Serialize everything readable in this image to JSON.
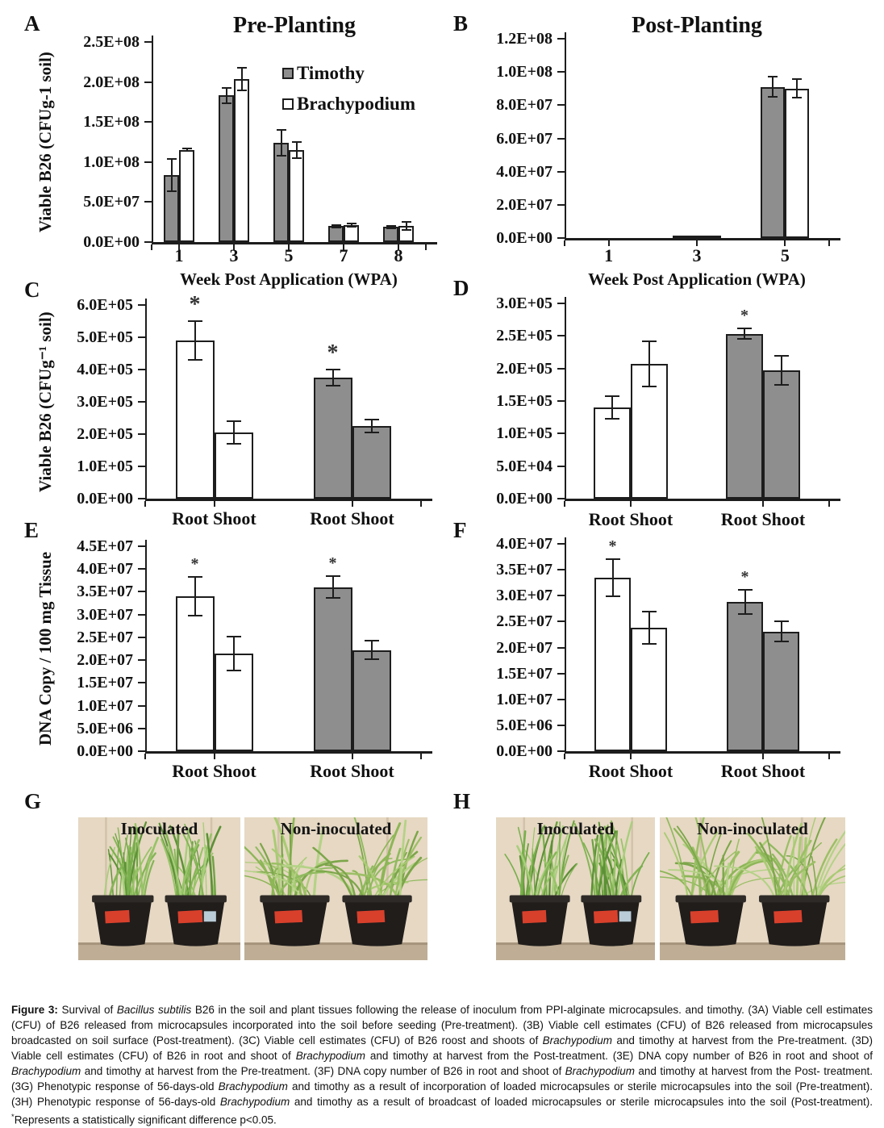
{
  "colors": {
    "bar_gray": "#8e8e8e",
    "bar_white": "#ffffff",
    "bar_border": "#1d1d1d",
    "axis": "#1d1d1d",
    "text": "#111111",
    "star": "#333333",
    "photo_wall": "#e6d8c3",
    "photo_floor": "#bfae95",
    "pot": "#201d1b",
    "sticker_red": "#d8402c",
    "sticker_blue": "#b9ccd7"
  },
  "chart_data": [
    {
      "panel": "A",
      "type": "bar",
      "title": "Pre-Planting",
      "ylabel": "Viable B26 (CFUg-1 soil)",
      "xlabel": "Week Post Application (WPA)",
      "ylim": [
        0,
        250000000.0
      ],
      "grid": false,
      "yticks": [
        "0.0E+00",
        "5.0E+07",
        "1.0E+08",
        "1.5E+08",
        "2.0E+08",
        "2.5E+08"
      ],
      "categories": [
        "1",
        "3",
        "5",
        "7",
        "8"
      ],
      "series": [
        {
          "name": "Timothy",
          "fill": "gray",
          "values": [
            84000000.0,
            183000000.0,
            124000000.0,
            20000000.0,
            19000000.0
          ],
          "errors": [
            20000000.0,
            10000000.0,
            16000000.0,
            1500000.0,
            1500000.0
          ],
          "stars": [
            false,
            false,
            false,
            false,
            false
          ]
        },
        {
          "name": "Brachypodium",
          "fill": "white",
          "values": [
            115000000.0,
            204000000.0,
            115000000.0,
            21000000.0,
            20000000.0
          ],
          "errors": [
            1500000.0,
            14000000.0,
            10000000.0,
            2000000.0,
            5000000.0
          ],
          "stars": [
            false,
            false,
            false,
            false,
            false
          ]
        }
      ],
      "legend": {
        "position": "top-right",
        "items": [
          {
            "label": "Timothy",
            "fill": "gray"
          },
          {
            "label": "Brachypodium",
            "fill": "white"
          }
        ]
      }
    },
    {
      "panel": "B",
      "type": "bar",
      "title": "Post-Planting",
      "ylabel": "",
      "xlabel": "Week Post Application (WPA)",
      "ylim": [
        0,
        120000000.0
      ],
      "grid": false,
      "yticks": [
        "0.0E+00",
        "2.0E+07",
        "4.0E+07",
        "6.0E+07",
        "8.0E+07",
        "1.0E+08",
        "1.2E+08"
      ],
      "categories": [
        "1",
        "3",
        "5"
      ],
      "series": [
        {
          "name": "Timothy",
          "fill": "gray",
          "values": [
            0,
            1000000.0,
            91000000.0
          ],
          "errors": [
            0,
            0,
            6000000.0
          ],
          "stars": [
            false,
            false,
            false
          ]
        },
        {
          "name": "Brachypodium",
          "fill": "white",
          "values": [
            0,
            1000000.0,
            90000000.0
          ],
          "errors": [
            0,
            0,
            5500000.0
          ],
          "stars": [
            false,
            false,
            false
          ]
        }
      ]
    },
    {
      "panel": "C",
      "type": "bar",
      "title": "",
      "ylabel": "Viable B26 (CFUg⁻¹ soil)",
      "xlabel": "",
      "ylim": [
        0,
        600000.0
      ],
      "grid": false,
      "yticks": [
        "0.0E+00",
        "1.0E+05",
        "2.0E+05",
        "3.0E+05",
        "4.0E+05",
        "5.0E+05",
        "6.0E+05"
      ],
      "categories": [
        "Root Shoot",
        "Root Shoot"
      ],
      "group_names": [
        "Brachypodium",
        "Timothy"
      ],
      "group_fills": [
        "white",
        "gray"
      ],
      "series": [
        {
          "name": "Root",
          "values": [
            490000.0,
            375000.0
          ],
          "errors": [
            60000.0,
            25000.0
          ],
          "stars": [
            true,
            true
          ]
        },
        {
          "name": "Shoot",
          "values": [
            205000.0,
            225000.0
          ],
          "errors": [
            35000.0,
            20000.0
          ],
          "stars": [
            false,
            false
          ]
        }
      ]
    },
    {
      "panel": "D",
      "type": "bar",
      "title": "",
      "ylabel": "",
      "xlabel": "",
      "ylim": [
        0,
        300000.0
      ],
      "grid": false,
      "yticks": [
        "0.0E+00",
        "5.0E+04",
        "1.0E+05",
        "1.5E+05",
        "2.0E+05",
        "2.5E+05",
        "3.0E+05"
      ],
      "categories": [
        "Root Shoot",
        "Root Shoot"
      ],
      "group_names": [
        "Brachypodium",
        "Timothy"
      ],
      "group_fills": [
        "white",
        "gray"
      ],
      "series": [
        {
          "name": "Root",
          "values": [
            140000.0,
            253000.0
          ],
          "errors": [
            17000.0,
            8000.0
          ],
          "stars": [
            false,
            true
          ]
        },
        {
          "name": "Shoot",
          "values": [
            207000.0,
            197000.0
          ],
          "errors": [
            35000.0,
            22000.0
          ],
          "stars": [
            false,
            false
          ]
        }
      ]
    },
    {
      "panel": "E",
      "type": "bar",
      "title": "",
      "ylabel": "DNA Copy / 100 mg Tissue",
      "xlabel": "",
      "ylim": [
        0,
        45000000.0
      ],
      "grid": false,
      "yticks": [
        "0.0E+00",
        "5.0E+06",
        "1.0E+07",
        "1.5E+07",
        "2.0E+07",
        "2.5E+07",
        "3.0E+07",
        "3.5E+07",
        "4.0E+07",
        "4.5E+07"
      ],
      "categories": [
        "Root Shoot",
        "Root Shoot"
      ],
      "group_names": [
        "Brachypodium",
        "Timothy"
      ],
      "group_fills": [
        "white",
        "gray"
      ],
      "series": [
        {
          "name": "Root",
          "values": [
            34000000.0,
            36000000.0
          ],
          "errors": [
            4200000.0,
            2400000.0
          ],
          "stars": [
            true,
            true
          ]
        },
        {
          "name": "Shoot",
          "values": [
            21500000.0,
            22200000.0
          ],
          "errors": [
            3700000.0,
            2000000.0
          ],
          "stars": [
            false,
            false
          ]
        }
      ]
    },
    {
      "panel": "F",
      "type": "bar",
      "title": "",
      "ylabel": "",
      "xlabel": "",
      "ylim": [
        0,
        40000000.0
      ],
      "grid": false,
      "yticks": [
        "0.0E+00",
        "5.0E+06",
        "1.0E+07",
        "1.5E+07",
        "2.0E+07",
        "2.5E+07",
        "3.0E+07",
        "3.5E+07",
        "4.0E+07"
      ],
      "categories": [
        "Root Shoot",
        "Root Shoot"
      ],
      "group_names": [
        "Brachypodium",
        "Timothy"
      ],
      "group_fills": [
        "white",
        "gray"
      ],
      "series": [
        {
          "name": "Root",
          "values": [
            33500000.0,
            28800000.0
          ],
          "errors": [
            3600000.0,
            2400000.0
          ],
          "stars": [
            true,
            true
          ]
        },
        {
          "name": "Shoot",
          "values": [
            23800000.0,
            23100000.0
          ],
          "errors": [
            3100000.0,
            2000000.0
          ],
          "stars": [
            false,
            false
          ]
        }
      ]
    }
  ],
  "photos": {
    "G": {
      "letter": "G",
      "items": [
        {
          "title": "Inoculated"
        },
        {
          "title": "Non-inoculated"
        }
      ]
    },
    "H": {
      "letter": "H",
      "items": [
        {
          "title": "Inoculated"
        },
        {
          "title": "Non-inoculated"
        }
      ]
    }
  },
  "caption": {
    "segments": [
      {
        "text": "Figure 3: ",
        "bold": true
      },
      {
        "text": "Survival of "
      },
      {
        "text": "Bacillus subtilis",
        "italic": true
      },
      {
        "text": " B26 in the soil and plant tissues following the release of inoculum from PPI-alginate microcapsules. and timothy. (3A) Viable cell estimates (CFU) of B26 released from microcapsules incorporated into the soil before seeding (Pre-treatment). (3B) Viable cell estimates (CFU) of B26 released from microcapsules broadcasted on soil surface (Post-treatment). (3C) Viable cell estimates (CFU) of B26 roost and shoots of "
      },
      {
        "text": "Brachypodium",
        "italic": true
      },
      {
        "text": " and timothy at harvest from the Pre-treatment. (3D) Viable cell estimates (CFU) of B26 in root and shoot of "
      },
      {
        "text": "Brachypodium",
        "italic": true
      },
      {
        "text": " and timothy at harvest from the Post-treatment. (3E) DNA copy number of B26 in root and shoot of "
      },
      {
        "text": "Brachypodium",
        "italic": true
      },
      {
        "text": " and timothy at harvest from the Pre-treatment. (3F) DNA copy number of B26 in root and shoot of "
      },
      {
        "text": "Brachypodium",
        "italic": true
      },
      {
        "text": " and timothy at harvest from the Post- treatment. (3G) Phenotypic response of 56-days-old "
      },
      {
        "text": "Brachypodium",
        "italic": true
      },
      {
        "text": " and timothy as a result of incorporation of loaded microcapsules or sterile microcapsules into the soil (Pre-treatment). (3H) Phenotypic response of 56-days-old "
      },
      {
        "text": "Brachypodium",
        "italic": true
      },
      {
        "text": " and timothy as a result of broadcast of loaded microcapsules or sterile microcapsules into the soil (Post-treatment). "
      },
      {
        "text": "*",
        "sup": true
      },
      {
        "text": "Represents a statistically significant difference p<0.05."
      }
    ]
  }
}
